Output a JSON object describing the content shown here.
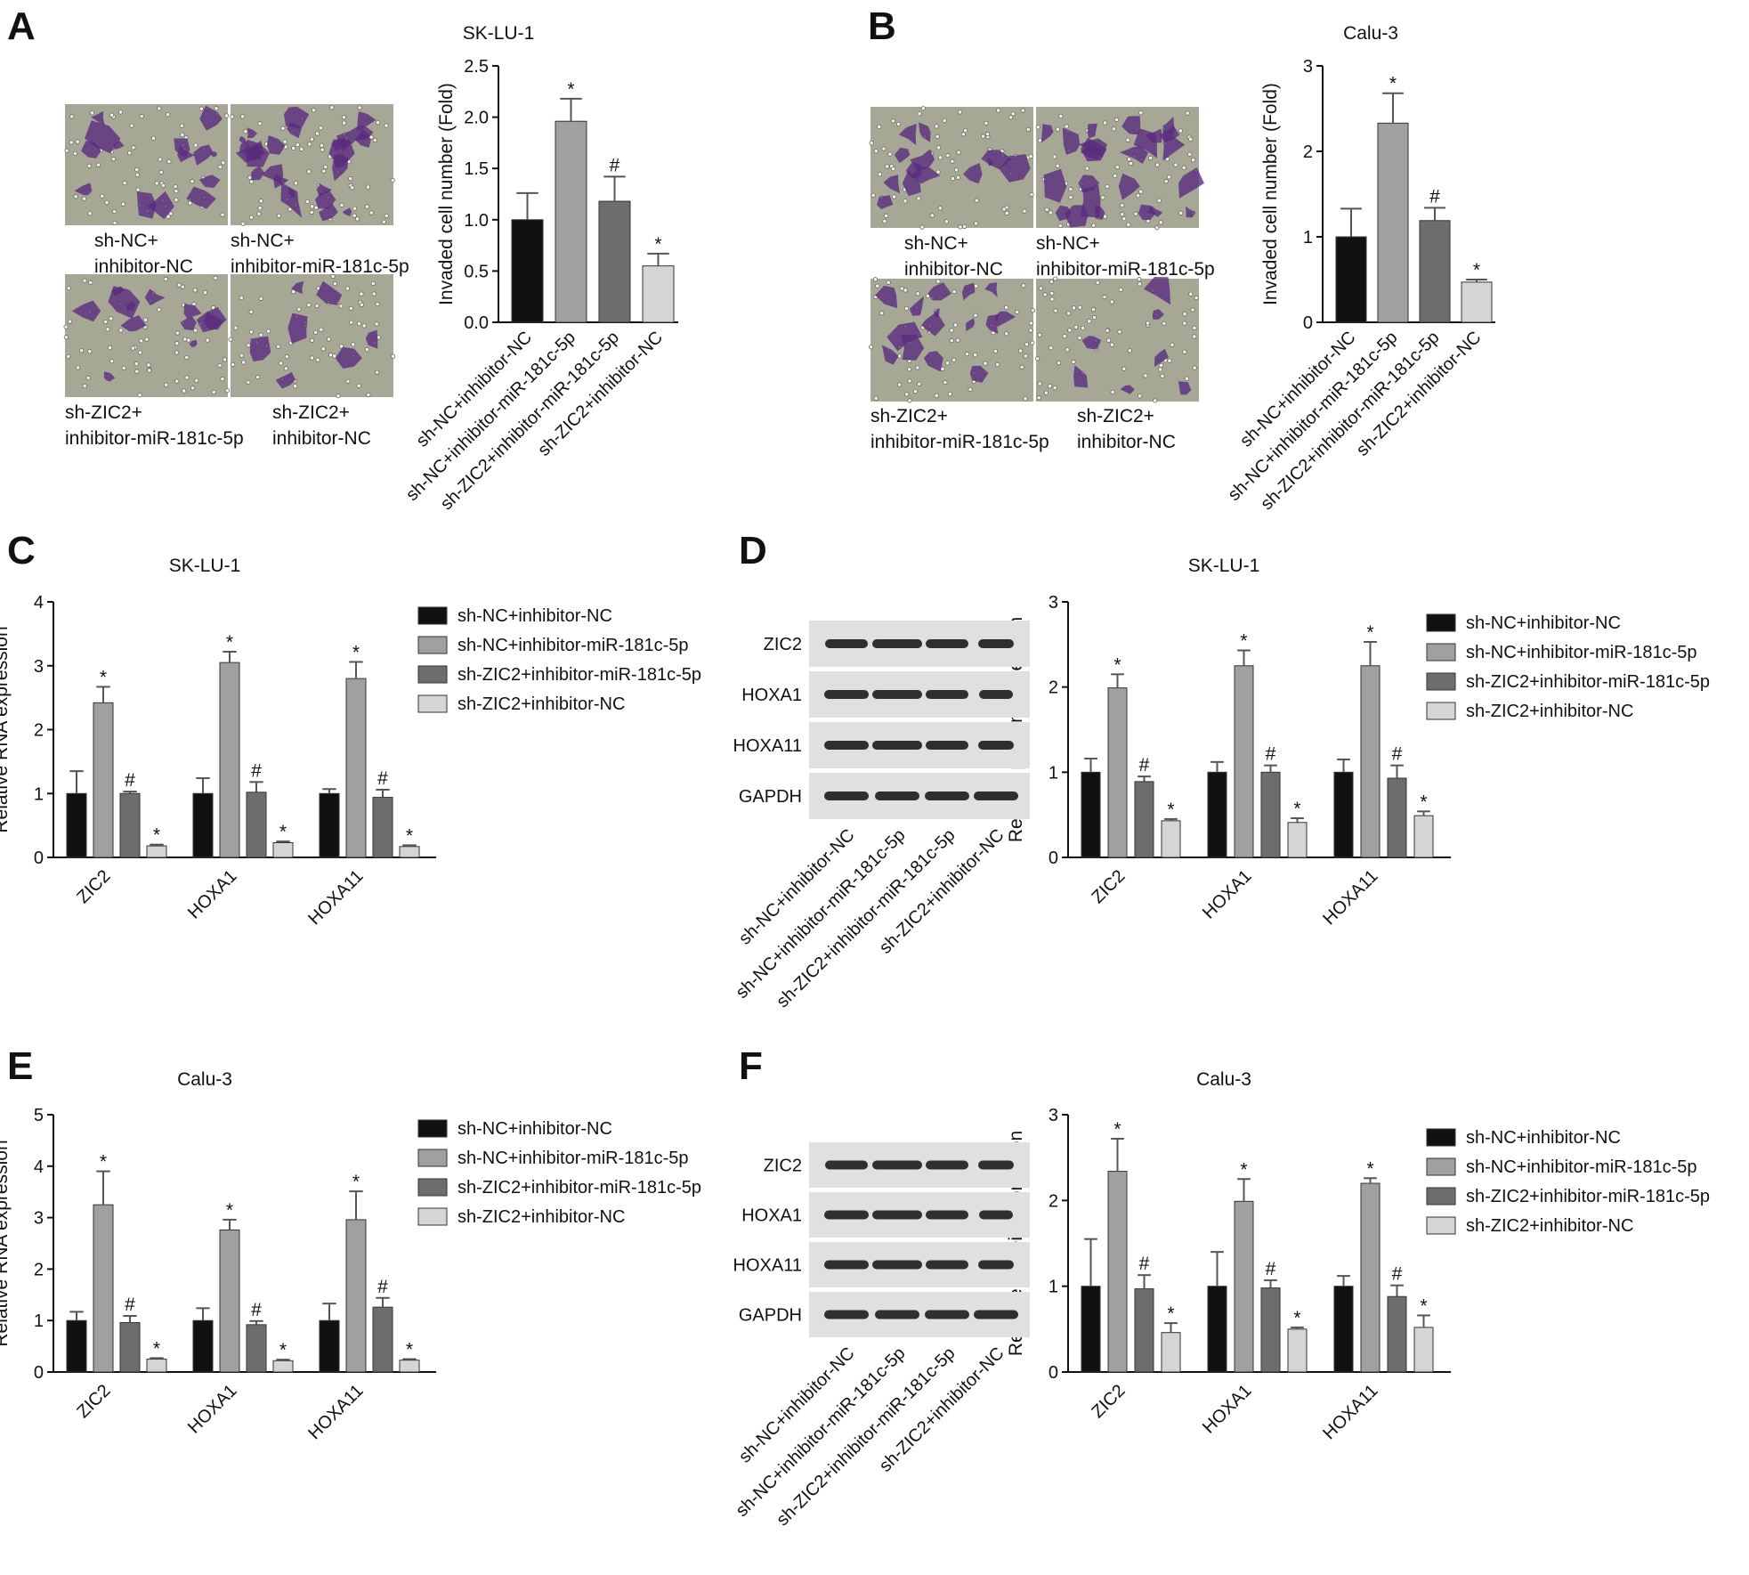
{
  "panels": [
    {
      "id": "A",
      "letter": "A"
    },
    {
      "id": "B",
      "letter": "B"
    },
    {
      "id": "C",
      "letter": "C"
    },
    {
      "id": "D",
      "letter": "D"
    },
    {
      "id": "E",
      "letter": "E"
    },
    {
      "id": "F",
      "letter": "F"
    }
  ],
  "groups": [
    {
      "name": "sh-NC+inhibitor-NC",
      "color": "#111111"
    },
    {
      "name": "sh-NC+inhibitor-miR-181c-5p",
      "color": "#a0a0a2"
    },
    {
      "name": "sh-ZIC2+inhibitor-miR-181c-5p",
      "color": "#6d6d6d"
    },
    {
      "name": "sh-ZIC2+inhibitor-NC",
      "color": "#d5d5d5"
    }
  ],
  "micrograph_captions": {
    "A": [
      [
        "sh-NC+",
        "inhibitor-NC"
      ],
      [
        "sh-NC+",
        "inhibitor-miR-181c-5p"
      ],
      [
        "sh-ZIC2+",
        "inhibitor-miR-181c-5p"
      ],
      [
        "sh-ZIC2+",
        "inhibitor-NC"
      ]
    ],
    "B": [
      [
        "sh-NC+",
        "inhibitor-NC"
      ],
      [
        "sh-NC+",
        "inhibitor-miR-181c-5p"
      ],
      [
        "sh-ZIC2+",
        "inhibitor-miR-181c-5p"
      ],
      [
        "sh-ZIC2+",
        "inhibitor-NC"
      ]
    ]
  },
  "blots": {
    "D": [
      "ZIC2",
      "HOXA1",
      "HOXA11",
      "GAPDH"
    ],
    "F": [
      "ZIC2",
      "HOXA1",
      "HOXA11",
      "GAPDH"
    ]
  },
  "blot_colors": {
    "background": "#e0e0e0",
    "band": "#1c1c1c"
  },
  "micrograph_colors": {
    "background": "#a6a895",
    "cells": "#5a2c7e"
  },
  "chart_data": [
    {
      "panel": "A",
      "type": "bar",
      "title": "SK-LU-1",
      "ylabel": "Invaded cell number (Fold)",
      "ylim": [
        0,
        2.5
      ],
      "yticks": [
        "0.0",
        "0.5",
        "1.0",
        "1.5",
        "2.0",
        "2.5"
      ],
      "categories": [
        "sh-NC+inhibitor-NC",
        "sh-NC+inhibitor-miR-181c-5p",
        "sh-ZIC2+inhibitor-miR-181c-5p",
        "sh-ZIC2+inhibitor-NC"
      ],
      "values": [
        1.0,
        1.96,
        1.18,
        0.55
      ],
      "errors": [
        0.26,
        0.22,
        0.24,
        0.12
      ],
      "marks": [
        "",
        "*",
        "#",
        "*"
      ]
    },
    {
      "panel": "B",
      "type": "bar",
      "title": "Calu-3",
      "ylabel": "Invaded cell number (Fold)",
      "ylim": [
        0,
        3
      ],
      "yticks": [
        "0",
        "1",
        "2",
        "3"
      ],
      "categories": [
        "sh-NC+inhibitor-NC",
        "sh-NC+inhibitor-miR-181c-5p",
        "sh-ZIC2+inhibitor-miR-181c-5p",
        "sh-ZIC2+inhibitor-NC"
      ],
      "values": [
        1.0,
        2.33,
        1.19,
        0.47
      ],
      "errors": [
        0.33,
        0.35,
        0.15,
        0.03
      ],
      "marks": [
        "",
        "*",
        "#",
        "*"
      ]
    },
    {
      "panel": "C",
      "type": "bar",
      "title": "SK-LU-1",
      "ylabel": "Relative RNA expression",
      "ylim": [
        0,
        4
      ],
      "yticks": [
        "0",
        "1",
        "2",
        "3",
        "4"
      ],
      "categories": [
        "ZIC2",
        "HOXA1",
        "HOXA11"
      ],
      "series": [
        {
          "name": "sh-NC+inhibitor-NC",
          "values": [
            1.0,
            1.0,
            1.0
          ],
          "errors": [
            0.35,
            0.24,
            0.07
          ],
          "marks": [
            "",
            "",
            ""
          ]
        },
        {
          "name": "sh-NC+inhibitor-miR-181c-5p",
          "values": [
            2.42,
            3.05,
            2.8
          ],
          "errors": [
            0.25,
            0.17,
            0.26
          ],
          "marks": [
            "*",
            "*",
            "*"
          ]
        },
        {
          "name": "sh-ZIC2+inhibitor-miR-181c-5p",
          "values": [
            1.0,
            1.02,
            0.94
          ],
          "errors": [
            0.03,
            0.16,
            0.12
          ],
          "marks": [
            "#",
            "#",
            "#"
          ]
        },
        {
          "name": "sh-ZIC2+inhibitor-NC",
          "values": [
            0.18,
            0.23,
            0.17
          ],
          "errors": [
            0.02,
            0.02,
            0.02
          ],
          "marks": [
            "*",
            "*",
            "*"
          ]
        }
      ]
    },
    {
      "panel": "D",
      "type": "bar",
      "title": "SK-LU-1",
      "ylabel": "Relative protein expression",
      "ylim": [
        0,
        3
      ],
      "yticks": [
        "0",
        "1",
        "2",
        "3"
      ],
      "categories": [
        "ZIC2",
        "HOXA1",
        "HOXA11"
      ],
      "series": [
        {
          "name": "sh-NC+inhibitor-NC",
          "values": [
            1.0,
            1.0,
            1.0
          ],
          "errors": [
            0.16,
            0.12,
            0.15
          ],
          "marks": [
            "",
            "",
            ""
          ]
        },
        {
          "name": "sh-NC+inhibitor-miR-181c-5p",
          "values": [
            1.99,
            2.25,
            2.25
          ],
          "errors": [
            0.16,
            0.18,
            0.28
          ],
          "marks": [
            "*",
            "*",
            "*"
          ]
        },
        {
          "name": "sh-ZIC2+inhibitor-miR-181c-5p",
          "values": [
            0.89,
            1.0,
            0.93
          ],
          "errors": [
            0.06,
            0.08,
            0.15
          ],
          "marks": [
            "#",
            "#",
            "#"
          ]
        },
        {
          "name": "sh-ZIC2+inhibitor-NC",
          "values": [
            0.43,
            0.41,
            0.49
          ],
          "errors": [
            0.02,
            0.05,
            0.05
          ],
          "marks": [
            "*",
            "*",
            "*"
          ]
        }
      ],
      "blot_lanes": [
        "sh-NC+inhibitor-NC",
        "sh-NC+inhibitor-miR-181c-5p",
        "sh-ZIC2+inhibitor-miR-181c-5p",
        "sh-ZIC2+inhibitor-NC"
      ]
    },
    {
      "panel": "E",
      "type": "bar",
      "title": "Calu-3",
      "ylabel": "Relative RNA expression",
      "ylim": [
        0,
        5
      ],
      "yticks": [
        "0",
        "1",
        "2",
        "3",
        "4",
        "5"
      ],
      "categories": [
        "ZIC2",
        "HOXA1",
        "HOXA11"
      ],
      "series": [
        {
          "name": "sh-NC+inhibitor-NC",
          "values": [
            1.0,
            1.0,
            1.0
          ],
          "errors": [
            0.17,
            0.24,
            0.33
          ],
          "marks": [
            "",
            "",
            ""
          ]
        },
        {
          "name": "sh-NC+inhibitor-miR-181c-5p",
          "values": [
            3.25,
            2.76,
            2.96
          ],
          "errors": [
            0.65,
            0.2,
            0.55
          ],
          "marks": [
            "*",
            "*",
            "*"
          ]
        },
        {
          "name": "sh-ZIC2+inhibitor-miR-181c-5p",
          "values": [
            0.96,
            0.92,
            1.26
          ],
          "errors": [
            0.13,
            0.07,
            0.18
          ],
          "marks": [
            "#",
            "#",
            "#"
          ]
        },
        {
          "name": "sh-ZIC2+inhibitor-NC",
          "values": [
            0.25,
            0.22,
            0.23
          ],
          "errors": [
            0.02,
            0.02,
            0.02
          ],
          "marks": [
            "*",
            "*",
            "*"
          ]
        }
      ]
    },
    {
      "panel": "F",
      "type": "bar",
      "title": "Calu-3",
      "ylabel": "Relative protein expression",
      "ylim": [
        0,
        3
      ],
      "yticks": [
        "0",
        "1",
        "2",
        "3"
      ],
      "categories": [
        "ZIC2",
        "HOXA1",
        "HOXA11"
      ],
      "series": [
        {
          "name": "sh-NC+inhibitor-NC",
          "values": [
            1.0,
            1.0,
            1.0
          ],
          "errors": [
            0.55,
            0.4,
            0.12
          ],
          "marks": [
            "",
            "",
            ""
          ]
        },
        {
          "name": "sh-NC+inhibitor-miR-181c-5p",
          "values": [
            2.34,
            1.99,
            2.2
          ],
          "errors": [
            0.38,
            0.26,
            0.06
          ],
          "marks": [
            "*",
            "*",
            "*"
          ]
        },
        {
          "name": "sh-ZIC2+inhibitor-miR-181c-5p",
          "values": [
            0.97,
            0.98,
            0.88
          ],
          "errors": [
            0.16,
            0.09,
            0.13
          ],
          "marks": [
            "#",
            "#",
            "#"
          ]
        },
        {
          "name": "sh-ZIC2+inhibitor-NC",
          "values": [
            0.46,
            0.5,
            0.52
          ],
          "errors": [
            0.11,
            0.02,
            0.14
          ],
          "marks": [
            "*",
            "*",
            "*"
          ]
        }
      ],
      "blot_lanes": [
        "sh-NC+inhibitor-NC",
        "sh-NC+inhibitor-miR-181c-5p",
        "sh-ZIC2+inhibitor-miR-181c-5p",
        "sh-ZIC2+inhibitor-NC"
      ]
    }
  ]
}
